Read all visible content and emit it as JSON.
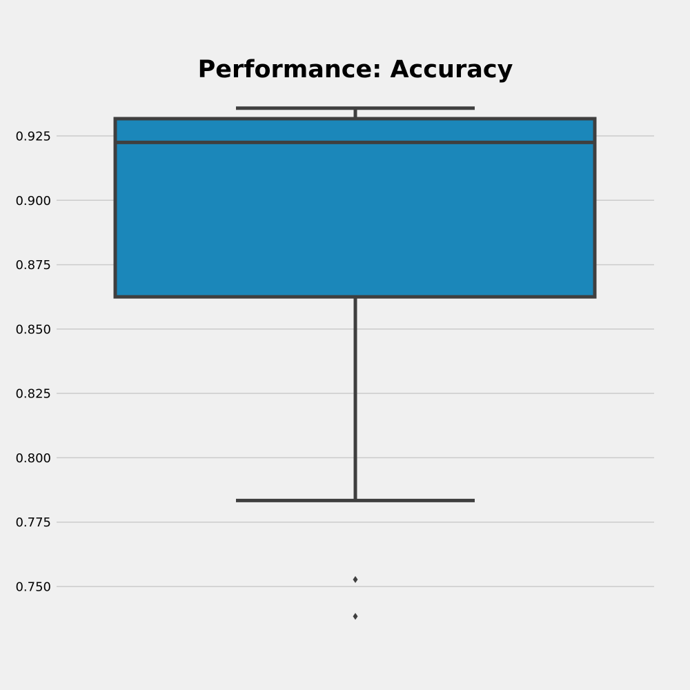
{
  "chart_data": {
    "type": "box",
    "title": "Performance: Accuracy",
    "xlabel": "",
    "ylabel": "",
    "ylim": [
      0.727,
      0.95
    ],
    "yticks": [
      0.75,
      0.775,
      0.8,
      0.825,
      0.85,
      0.875,
      0.9,
      0.925
    ],
    "ytick_labels": [
      "0.750",
      "0.775",
      "0.800",
      "0.825",
      "0.850",
      "0.875",
      "0.900",
      "0.925"
    ],
    "grid": "horizontal",
    "box": {
      "q1": 0.8625,
      "median": 0.9225,
      "q3": 0.9317,
      "whisker_low": 0.7834,
      "whisker_high": 0.9358,
      "outliers": [
        0.7527,
        0.7384
      ]
    },
    "colors": {
      "box_fill": "#1b87ba",
      "line": "#3f3f3f",
      "background": "#f0f0f0",
      "grid": "#cbcbcb"
    }
  }
}
